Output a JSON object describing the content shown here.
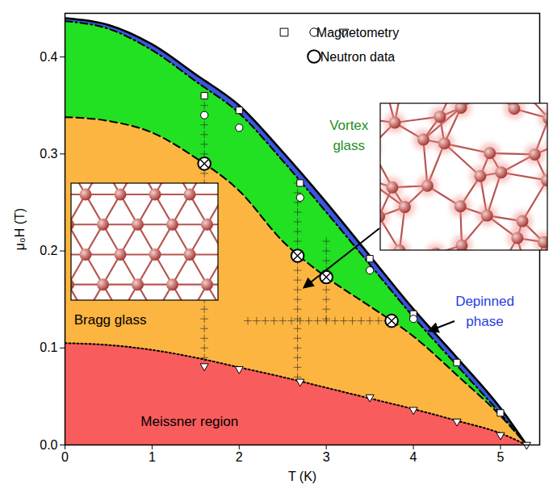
{
  "chart_data": {
    "type": "area",
    "xlabel": "T (K)",
    "ylabel": "μ₀H (T)",
    "xlim": [
      0,
      5.45
    ],
    "ylim": [
      0,
      0.445
    ],
    "xticks": [
      0,
      1,
      2,
      3,
      4,
      5
    ],
    "yticks": [
      {
        "value": 0,
        "label": "0.0"
      },
      0.1,
      0.2,
      0.3,
      0.4
    ],
    "grid": false,
    "legend": "top-right",
    "x": [
      0,
      0.5,
      1,
      1.5,
      2,
      2.5,
      3,
      3.5,
      4,
      4.5,
      5,
      5.3
    ],
    "series": [
      {
        "name": "Depinned phase",
        "type": "area",
        "color": "#3a56dc",
        "line_style": "solid",
        "values": [
          0.44,
          0.433,
          0.413,
          0.382,
          0.35,
          0.302,
          0.25,
          0.195,
          0.14,
          0.09,
          0.038,
          0
        ]
      },
      {
        "name": "Vortex glass",
        "type": "area",
        "color": "#22e022",
        "line_style": "dashdot",
        "values": [
          0.437,
          0.429,
          0.407,
          0.375,
          0.342,
          0.293,
          0.24,
          0.186,
          0.132,
          0.082,
          0.032,
          0
        ]
      },
      {
        "name": "Bragg glass",
        "type": "area",
        "color": "#fbb540",
        "line_style": "dashed",
        "values": [
          0.338,
          0.334,
          0.322,
          0.296,
          0.262,
          0.21,
          0.173,
          0.143,
          0.112,
          0.072,
          0.03,
          0
        ]
      },
      {
        "name": "Meissner region",
        "type": "area",
        "color": "#f95c5c",
        "line_style": "dotted",
        "values": [
          0.105,
          0.103,
          0.098,
          0.09,
          0.08,
          0.07,
          0.059,
          0.048,
          0.037,
          0.025,
          0.012,
          0
        ]
      },
      {
        "name": "Magnetometry",
        "type": "scatter",
        "marker": "square",
        "x": [
          1.6,
          2.0,
          2.7,
          3.5,
          4.0,
          4.5,
          5.0
        ],
        "values": [
          0.36,
          0.345,
          0.27,
          0.192,
          0.135,
          0.085,
          0.033
        ]
      },
      {
        "name": "Magnetometry",
        "type": "scatter",
        "marker": "circle",
        "x": [
          1.6,
          2.0,
          2.7,
          3.5,
          4.0
        ],
        "values": [
          0.34,
          0.327,
          0.255,
          0.18,
          0.13
        ]
      },
      {
        "name": "Magnetometry",
        "type": "scatter",
        "marker": "triangle-down",
        "x": [
          1.6,
          2.0,
          2.7,
          3.5,
          4.0,
          4.5,
          5.0,
          5.3
        ],
        "values": [
          0.081,
          0.078,
          0.065,
          0.049,
          0.036,
          0.024,
          0.01,
          0
        ]
      },
      {
        "name": "Neutron data",
        "type": "scatter",
        "marker": "plus",
        "x": [
          1.6,
          1.6,
          1.6,
          1.6,
          1.6,
          1.6,
          1.6,
          1.6,
          1.6,
          1.6,
          1.6,
          1.6,
          1.6,
          1.6,
          1.6,
          1.6,
          1.6,
          1.6,
          1.6,
          1.6,
          1.6,
          1.6,
          1.6,
          1.6,
          1.6,
          1.6,
          1.6,
          1.6,
          2.67,
          2.67,
          2.67,
          2.67,
          2.67,
          2.67,
          2.67,
          2.67,
          2.67,
          2.67,
          2.67,
          2.67,
          2.67,
          2.67,
          2.67,
          2.67,
          2.67,
          2.67,
          2.67,
          2.67,
          2.67,
          3.0,
          3.0,
          3.0,
          3.0,
          3.0,
          3.0,
          3.0,
          3.0,
          3.0,
          2.1,
          2.2,
          2.3,
          2.4,
          2.5,
          2.6,
          2.7,
          2.8,
          2.9,
          3.0,
          3.1,
          3.2,
          3.3,
          3.4,
          3.5,
          3.6,
          3.7
        ],
        "values": [
          0.09,
          0.1,
          0.11,
          0.12,
          0.13,
          0.14,
          0.15,
          0.16,
          0.17,
          0.18,
          0.19,
          0.2,
          0.21,
          0.22,
          0.23,
          0.24,
          0.25,
          0.26,
          0.27,
          0.28,
          0.29,
          0.3,
          0.31,
          0.32,
          0.33,
          0.34,
          0.35,
          0.36,
          0.07,
          0.08,
          0.09,
          0.1,
          0.11,
          0.12,
          0.13,
          0.14,
          0.15,
          0.16,
          0.17,
          0.18,
          0.19,
          0.2,
          0.21,
          0.22,
          0.23,
          0.24,
          0.25,
          0.26,
          0.27,
          0.13,
          0.14,
          0.15,
          0.16,
          0.17,
          0.18,
          0.19,
          0.2,
          0.21,
          0.128,
          0.128,
          0.128,
          0.128,
          0.128,
          0.128,
          0.128,
          0.128,
          0.128,
          0.128,
          0.128,
          0.128,
          0.128,
          0.128,
          0.128,
          0.128,
          0.128
        ]
      },
      {
        "name": "Neutron data",
        "type": "scatter",
        "marker": "circled-x",
        "x": [
          1.6,
          2.67,
          3.0,
          3.75
        ],
        "values": [
          0.29,
          0.195,
          0.173,
          0.128
        ]
      }
    ]
  }
}
